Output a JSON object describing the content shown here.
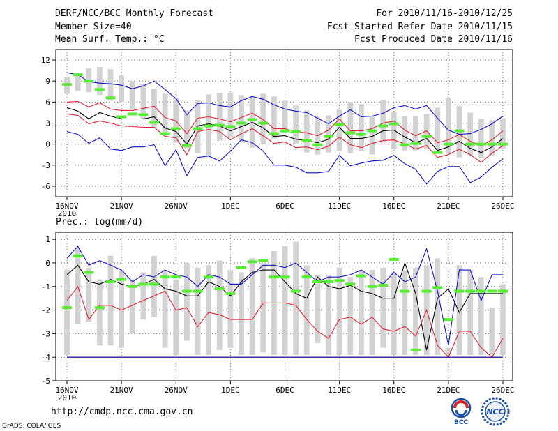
{
  "header": {
    "title": "DERF/NCC/BCC Monthly Forecast",
    "member_size": "Member Size=40",
    "variable": "Mean Surf. Temp.: °C",
    "period": "For 2010/11/16-2010/12/25",
    "started": "Fcst Started Refer Date 2010/11/15",
    "produced": "Fcst Produced Date 2010/11/16"
  },
  "footer": {
    "url": "http://cmdp.ncc.cma.gov.cn",
    "grads": "GrADS: COLA/IGES",
    "logo_bcc": "BCC",
    "logo_ncc": "NCC"
  },
  "colors": {
    "box": "#d2d2d2",
    "median": "#55ee33",
    "mean": "#000000",
    "inner": "#dd2233",
    "outer": "#1111cc",
    "grid": "#666666"
  },
  "chart_data": [
    {
      "type": "line",
      "title": "Mean Surf. Temp.: °C",
      "ylabel": "°C",
      "ylim": [
        -7.5,
        13.5
      ],
      "yticks": [
        12,
        9,
        6,
        3,
        0,
        -3,
        -6
      ],
      "xticks": [
        "16NOV",
        "21NOV",
        "26NOV",
        "1DEC",
        "6DEC",
        "11DEC",
        "16DEC",
        "21DEC",
        "26DEC"
      ],
      "xyear": "2010",
      "x_day_start": 0,
      "x_day_end": 40,
      "box_low": [
        7.2,
        7.6,
        7.4,
        7.0,
        6.2,
        6.0,
        5.0,
        3.5,
        2.4,
        1.2,
        0.2,
        -0.6,
        -1.3,
        -1.8,
        0.5,
        0.9,
        0.4,
        -0.5,
        0.0,
        0.8,
        1.6,
        0.0,
        -1.2,
        -1.5,
        -1.2,
        -1.0,
        -1.3,
        -1.0,
        -1.5,
        0.2,
        -0.7,
        -0.9,
        -0.9,
        -0.6,
        -0.8,
        -1.4,
        -1.9,
        -1.6,
        -2.0,
        -1.6,
        -0.6
      ],
      "box_high": [
        9.6,
        10.2,
        10.8,
        11.0,
        10.7,
        9.8,
        9.0,
        8.6,
        7.9,
        7.2,
        6.6,
        4.8,
        6.3,
        7.1,
        7.3,
        7.3,
        7.0,
        6.8,
        7.2,
        6.8,
        6.2,
        5.5,
        4.8,
        3.9,
        4.1,
        4.9,
        6.0,
        5.7,
        4.0,
        6.3,
        4.6,
        4.0,
        4.0,
        4.3,
        5.2,
        6.6,
        5.4,
        4.5,
        3.6,
        3.4,
        3.7
      ],
      "median": [
        8.5,
        9.9,
        9.0,
        7.8,
        6.6,
        3.9,
        4.3,
        4.2,
        3.1,
        1.5,
        2.2,
        -0.2,
        2.2,
        2.6,
        2.7,
        2.5,
        3.0,
        3.5,
        3.0,
        1.5,
        1.9,
        1.8,
        0.5,
        -0.1,
        1.1,
        2.8,
        1.6,
        1.4,
        1.9,
        2.6,
        2.9,
        -0.1,
        0.1,
        1.1,
        -1.2,
        0.0,
        1.9,
        0.0,
        0.0,
        0.0,
        0.0
      ],
      "series": [
        {
          "name": "mean",
          "color": "#000000",
          "values": [
            5.2,
            4.7,
            3.6,
            4.5,
            4.0,
            3.6,
            3.6,
            3.6,
            3.9,
            2.3,
            1.8,
            0.0,
            2.6,
            2.9,
            2.6,
            1.9,
            2.5,
            3.1,
            2.3,
            1.1,
            1.2,
            0.7,
            0.5,
            0.2,
            0.7,
            2.4,
            0.8,
            0.8,
            1.1,
            1.9,
            2.0,
            1.0,
            0.2,
            0.8,
            -0.9,
            -0.4,
            0.4,
            -0.6,
            -1.2,
            -0.4,
            0.8
          ]
        },
        {
          "name": "upper-inner",
          "color": "#dd2233",
          "values": [
            6.0,
            6.1,
            5.3,
            5.9,
            5.0,
            4.8,
            4.8,
            5.1,
            5.4,
            3.8,
            3.3,
            1.5,
            3.7,
            3.9,
            3.6,
            3.2,
            3.8,
            4.4,
            3.5,
            2.2,
            2.2,
            1.8,
            1.6,
            1.2,
            2.0,
            3.6,
            1.9,
            1.9,
            2.2,
            3.0,
            3.3,
            2.0,
            1.2,
            1.9,
            0.2,
            0.6,
            1.4,
            0.4,
            -0.2,
            0.6,
            1.9
          ]
        },
        {
          "name": "lower-inner",
          "color": "#dd2233",
          "values": [
            4.3,
            4.1,
            2.9,
            3.3,
            3.0,
            2.6,
            2.5,
            2.4,
            2.4,
            1.1,
            0.9,
            -1.5,
            1.8,
            2.1,
            1.8,
            0.6,
            1.5,
            2.2,
            1.2,
            0.1,
            0.3,
            -0.5,
            -0.4,
            -0.8,
            -0.3,
            1.0,
            -0.1,
            -0.5,
            0.1,
            0.5,
            0.6,
            0.0,
            -0.7,
            -0.2,
            -1.9,
            -1.5,
            -0.7,
            -1.5,
            -2.6,
            -1.3,
            -0.2
          ]
        },
        {
          "name": "upper-outer",
          "color": "#1111cc",
          "values": [
            10.2,
            9.9,
            8.9,
            8.7,
            8.6,
            8.4,
            7.9,
            8.3,
            9.0,
            7.8,
            6.5,
            4.2,
            5.8,
            5.9,
            5.5,
            5.3,
            6.2,
            6.8,
            6.4,
            5.6,
            5.0,
            4.7,
            4.5,
            3.7,
            2.9,
            4.0,
            4.9,
            3.9,
            4.0,
            4.4,
            5.2,
            5.5,
            5.0,
            5.5,
            3.7,
            2.0,
            1.4,
            1.5,
            2.1,
            2.9,
            4.0
          ]
        },
        {
          "name": "lower-outer",
          "color": "#1111cc",
          "values": [
            1.8,
            1.4,
            0.1,
            0.9,
            -0.7,
            -0.9,
            -0.4,
            -0.4,
            -0.1,
            -3.1,
            -0.8,
            -4.5,
            -1.9,
            -1.7,
            -2.4,
            -1.0,
            0.6,
            0.2,
            -1.0,
            -3.0,
            -3.0,
            -3.3,
            -4.1,
            -4.1,
            -3.9,
            -1.6,
            -3.1,
            -2.7,
            -2.4,
            -2.3,
            -1.6,
            -2.8,
            -3.6,
            -5.7,
            -3.9,
            -3.2,
            -3.2,
            -5.5,
            -4.7,
            -3.3,
            -2.1
          ]
        }
      ]
    },
    {
      "type": "line",
      "title": "Prec.: log(mm/d)",
      "ylabel": "log(mm/d)",
      "ylim": [
        -5,
        1.3
      ],
      "yticks": [
        1,
        0,
        -1,
        -2,
        -3,
        -4,
        -5
      ],
      "xticks": [
        "16NOV",
        "21NOV",
        "26NOV",
        "1DEC",
        "6DEC",
        "11DEC",
        "16DEC",
        "21DEC",
        "26DEC"
      ],
      "xyear": "2010",
      "x_day_start": 0,
      "x_day_end": 40,
      "box_low": [
        -3.9,
        -2.6,
        -2.5,
        -3.5,
        -3.5,
        -3.6,
        -3.0,
        -2.4,
        -2.3,
        -3.6,
        -3.9,
        -3.3,
        -3.9,
        -3.9,
        -3.7,
        -3.6,
        -3.9,
        -3.9,
        -3.8,
        -3.9,
        -3.9,
        -3.9,
        -3.9,
        -3.4,
        -3.9,
        -3.9,
        -3.9,
        -3.9,
        -3.9,
        -3.6,
        -3.9,
        -3.9,
        -3.9,
        -3.9,
        -3.9,
        -3.9,
        -3.9,
        -3.9,
        -3.9,
        -3.9,
        -3.9
      ],
      "box_high": [
        -0.3,
        0.6,
        -0.2,
        -0.7,
        0.3,
        -0.3,
        -0.7,
        -0.4,
        0.3,
        -0.3,
        -0.7,
        0.0,
        -0.2,
        -0.1,
        0.1,
        -0.3,
        -0.4,
        0.2,
        0.0,
        0.5,
        0.7,
        0.9,
        -0.1,
        -0.5,
        -0.5,
        -0.2,
        -0.6,
        -0.3,
        -0.3,
        -0.2,
        -0.4,
        -0.3,
        -0.2,
        -0.1,
        0.2,
        -3.6,
        -0.1,
        -0.3,
        -0.6,
        -1.9,
        -0.9
      ],
      "median": [
        -1.9,
        0.3,
        -0.4,
        -1.9,
        -0.8,
        -0.7,
        -1.0,
        -0.9,
        -0.9,
        -0.6,
        -0.6,
        -1.2,
        -1.2,
        -0.6,
        -1.1,
        -1.3,
        -0.2,
        0.05,
        0.1,
        -0.6,
        -0.6,
        -1.2,
        -0.6,
        -0.8,
        -0.8,
        -0.75,
        -0.9,
        -0.55,
        -1.0,
        -0.95,
        0.15,
        -1.2,
        -3.7,
        -1.2,
        -1.05,
        -2.4,
        -1.2,
        -1.2,
        -1.2,
        -1.2,
        -1.2
      ],
      "series": [
        {
          "name": "mean",
          "color": "#000000",
          "values": [
            -0.5,
            -0.1,
            -0.8,
            -0.9,
            -0.7,
            -0.9,
            -1.0,
            -0.9,
            -0.7,
            -1.1,
            -1.2,
            -1.4,
            -1.4,
            -0.8,
            -1.0,
            -1.4,
            -0.8,
            -0.4,
            -0.3,
            -0.3,
            -0.8,
            -1.3,
            -1.5,
            -0.6,
            -1.0,
            -1.1,
            -0.95,
            -1.2,
            -1.3,
            -1.5,
            -1.5,
            -0.0,
            -1.3,
            -3.7,
            -1.5,
            -1.1,
            -2.1,
            -1.3,
            -1.3,
            -1.3,
            -1.3
          ]
        },
        {
          "name": "upper-inner",
          "color": "#dd2233",
          "values": [
            -1.6,
            -1.0,
            -2.4,
            -1.8,
            -1.8,
            -2.0,
            -1.8,
            -1.6,
            -1.4,
            -1.2,
            -2.0,
            -1.9,
            -2.7,
            -2.1,
            -2.2,
            -2.4,
            -2.4,
            -2.4,
            -1.7,
            -1.7,
            -1.7,
            -1.8,
            -2.4,
            -2.9,
            -3.2,
            -2.4,
            -2.3,
            -2.6,
            -2.3,
            -2.8,
            -2.9,
            -2.7,
            -3.1,
            -2.0,
            -3.5,
            -4.0,
            -2.9,
            -2.9,
            -3.6,
            -4.0,
            -3.2
          ]
        },
        {
          "name": "lower-inner",
          "color": "#dd2233",
          "values": [
            -4.0,
            -4.0,
            -4.0,
            -4.0,
            -4.0,
            -4.0,
            -4.0,
            -4.0,
            -4.0,
            -4.0,
            -4.0,
            -4.0,
            -4.0,
            -4.0,
            -4.0,
            -4.0,
            -4.0,
            -4.0,
            -4.0,
            -4.0,
            -4.0,
            -4.0,
            -4.0,
            -4.0,
            -4.0,
            -4.0,
            -4.0,
            -4.0,
            -4.0,
            -4.0,
            -4.0,
            -4.0,
            -4.0,
            -4.0,
            -4.0,
            -4.0,
            -4.0,
            -4.0,
            -4.0,
            -4.0,
            -4.0
          ]
        },
        {
          "name": "upper-outer",
          "color": "#1111cc",
          "values": [
            0.2,
            0.7,
            -0.1,
            0.1,
            -0.1,
            -0.3,
            -0.8,
            -0.5,
            -0.6,
            -0.3,
            -0.5,
            -0.6,
            -1.0,
            -0.5,
            -0.6,
            -0.9,
            -0.9,
            -0.5,
            -0.1,
            -0.1,
            -0.2,
            0.0,
            -0.4,
            -0.8,
            -0.6,
            -0.6,
            -0.5,
            -0.3,
            -0.6,
            -0.9,
            -0.4,
            -0.8,
            -0.6,
            0.6,
            -1.2,
            -3.5,
            -0.3,
            -0.3,
            -1.6,
            -0.5,
            -0.5
          ]
        },
        {
          "name": "lower-outer",
          "color": "#1111cc",
          "values": [
            -4.0,
            -4.0,
            -4.0,
            -4.0,
            -4.0,
            -4.0,
            -4.0,
            -4.0,
            -4.0,
            -4.0,
            -4.0,
            -4.0,
            -4.0,
            -4.0,
            -4.0,
            -4.0,
            -4.0,
            -4.0,
            -4.0,
            -4.0,
            -4.0,
            -4.0,
            -4.0,
            -4.0,
            -4.0,
            -4.0,
            -4.0,
            -4.0,
            -4.0,
            -4.0,
            -4.0,
            -4.0,
            -4.0,
            -4.0,
            -4.0,
            -4.0,
            -4.0,
            -4.0,
            -4.0,
            -4.0,
            -4.0
          ]
        }
      ]
    }
  ]
}
